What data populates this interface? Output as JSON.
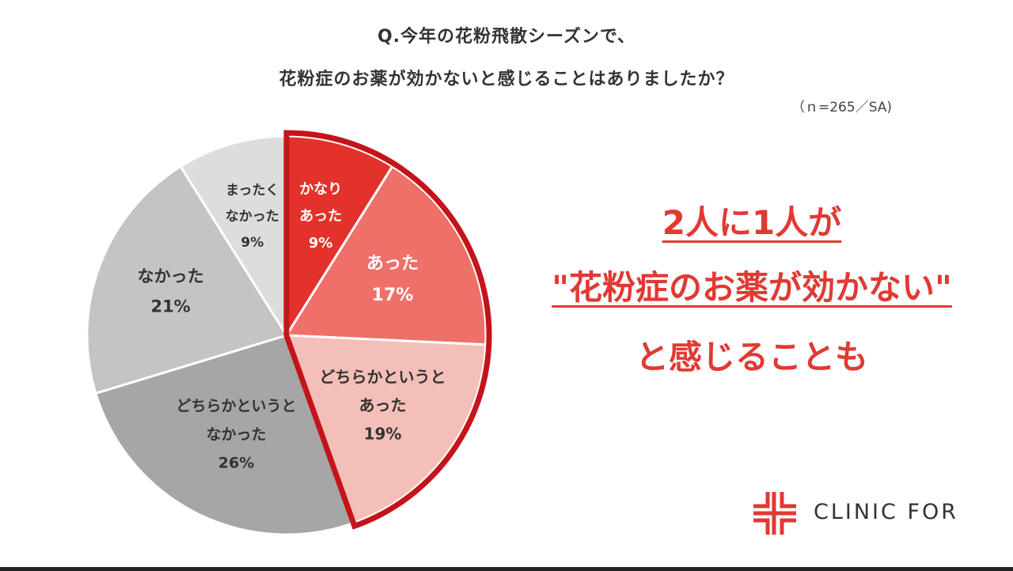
{
  "question": {
    "line1": "Q.今年の花粉飛散シーズンで、",
    "line2": "花粉症のお薬が効かないと感じることはありましたか？"
  },
  "sample_note": "（ｎ=265／SA)",
  "headline": {
    "line1": "2人に1人が",
    "line2": "\"花粉症のお薬が効かない\"",
    "line3": "と感じることも"
  },
  "logo": {
    "text": "CLINIC FOR"
  },
  "colors": {
    "accent": "#e03a33",
    "highlight_border": "#c4141b",
    "text": "#333333"
  },
  "chart_data": {
    "type": "pie",
    "start": "12 o'clock",
    "direction": "clockwise",
    "slices": [
      {
        "label_lines": [
          "かなり",
          "あった"
        ],
        "value": 9,
        "value_label": "9%",
        "color": "#e3312b",
        "text_color": "#ffffff",
        "highlighted": true
      },
      {
        "label_lines": [
          "あった"
        ],
        "value": 17,
        "value_label": "17%",
        "color": "#ee7068",
        "text_color": "#ffffff",
        "highlighted": true
      },
      {
        "label_lines": [
          "どちらかというと",
          "あった"
        ],
        "value": 19,
        "value_label": "19%",
        "color": "#f5bfb9",
        "text_color": "#333333",
        "highlighted": true
      },
      {
        "label_lines": [
          "どちらかというと",
          "なかった"
        ],
        "value": 26,
        "value_label": "26%",
        "color": "#a6a6a6",
        "text_color": "#333333",
        "highlighted": false
      },
      {
        "label_lines": [
          "なかった"
        ],
        "value": 21,
        "value_label": "21%",
        "color": "#c4c4c4",
        "text_color": "#333333",
        "highlighted": false
      },
      {
        "label_lines": [
          "まったく",
          "なかった"
        ],
        "value": 9,
        "value_label": "9%",
        "color": "#dddddd",
        "text_color": "#333333",
        "highlighted": false
      }
    ]
  }
}
